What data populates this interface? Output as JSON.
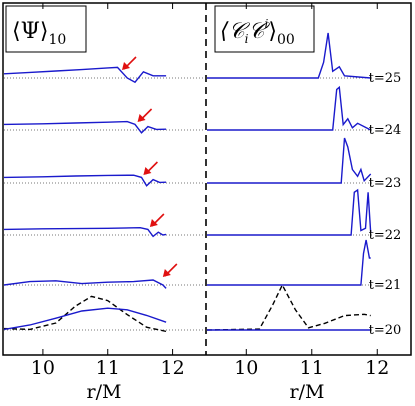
{
  "chart_data": {
    "type": "line",
    "xlabel": "r/M",
    "colors": {
      "main": "#1a1acc",
      "initial": "#000000",
      "baseline": "#777777",
      "arrow": "#e01010",
      "divider": "#000000"
    },
    "panels": [
      {
        "id": "left",
        "label_main": "⟨Ψ⟩",
        "label_sub": "10",
        "xlim": [
          9.4,
          12.5
        ],
        "x_ticks": [
          10,
          11,
          12
        ],
        "x_tick_labels": [
          "10",
          "11",
          "12"
        ]
      },
      {
        "id": "right",
        "label_main": "⟨𝒞",
        "label_sub_i": "i",
        "label_mid": "𝒞",
        "label_sup_i": "i",
        "label_close": "⟩",
        "label_sub": "00",
        "xlim": [
          9.4,
          12.5
        ],
        "x_ticks": [
          10,
          11,
          12
        ],
        "x_tick_labels": [
          "10",
          "11",
          "12"
        ]
      }
    ],
    "rows": [
      {
        "time_label": "t=25",
        "left_series": [
          [
            9.4,
            0.15
          ],
          [
            9.8,
            0.2
          ],
          [
            10.2,
            0.25
          ],
          [
            10.6,
            0.3
          ],
          [
            11.0,
            0.36
          ],
          [
            11.15,
            0.38
          ],
          [
            11.3,
            0.0
          ],
          [
            11.42,
            -0.15
          ],
          [
            11.55,
            0.22
          ],
          [
            11.7,
            0.08
          ],
          [
            11.9,
            0.08
          ]
        ],
        "arrow_x": 11.22,
        "right_series": [
          [
            9.4,
            0
          ],
          [
            11.1,
            0
          ],
          [
            11.18,
            0.35
          ],
          [
            11.25,
            1.0
          ],
          [
            11.32,
            0.15
          ],
          [
            11.42,
            0.25
          ],
          [
            11.5,
            0.05
          ],
          [
            11.9,
            0
          ]
        ]
      },
      {
        "time_label": "t=24",
        "left_series": [
          [
            9.4,
            0.2
          ],
          [
            10.0,
            0.22
          ],
          [
            10.5,
            0.25
          ],
          [
            11.0,
            0.28
          ],
          [
            11.3,
            0.3
          ],
          [
            11.42,
            0.2
          ],
          [
            11.52,
            -0.1
          ],
          [
            11.62,
            0.12
          ],
          [
            11.75,
            0.02
          ],
          [
            11.9,
            0.03
          ]
        ],
        "arrow_x": 11.46,
        "right_series": [
          [
            9.4,
            0
          ],
          [
            11.32,
            0
          ],
          [
            11.38,
            0.9
          ],
          [
            11.42,
            0.95
          ],
          [
            11.48,
            0.12
          ],
          [
            11.55,
            0.25
          ],
          [
            11.62,
            0.05
          ],
          [
            11.7,
            0.15
          ],
          [
            11.9,
            0
          ]
        ]
      },
      {
        "time_label": "t=23",
        "left_series": [
          [
            9.4,
            0.2
          ],
          [
            10.0,
            0.22
          ],
          [
            10.5,
            0.25
          ],
          [
            11.0,
            0.27
          ],
          [
            11.4,
            0.28
          ],
          [
            11.52,
            0.2
          ],
          [
            11.6,
            -0.1
          ],
          [
            11.7,
            0.12
          ],
          [
            11.8,
            0.02
          ],
          [
            11.9,
            0.03
          ]
        ],
        "arrow_x": 11.55,
        "right_series": [
          [
            9.4,
            0
          ],
          [
            11.45,
            0
          ],
          [
            11.5,
            1.0
          ],
          [
            11.55,
            0.8
          ],
          [
            11.62,
            0.3
          ],
          [
            11.7,
            0.15
          ],
          [
            11.75,
            0.3
          ],
          [
            11.8,
            0.05
          ],
          [
            11.9,
            0.2
          ]
        ]
      },
      {
        "time_label": "t=22",
        "left_series": [
          [
            9.4,
            0.2
          ],
          [
            10.0,
            0.22
          ],
          [
            10.5,
            0.23
          ],
          [
            11.0,
            0.24
          ],
          [
            11.5,
            0.26
          ],
          [
            11.62,
            0.2
          ],
          [
            11.7,
            -0.05
          ],
          [
            11.78,
            0.1
          ],
          [
            11.85,
            0.0
          ],
          [
            11.9,
            0.02
          ]
        ],
        "arrow_x": 11.65,
        "right_series": [
          [
            9.4,
            0
          ],
          [
            11.6,
            0
          ],
          [
            11.65,
            0.95
          ],
          [
            11.7,
            1.0
          ],
          [
            11.75,
            0.1
          ],
          [
            11.82,
            0.15
          ],
          [
            11.86,
            0.95
          ],
          [
            11.9,
            0.05
          ]
        ]
      },
      {
        "time_label": "t=21",
        "left_series": [
          [
            9.4,
            0.0
          ],
          [
            9.8,
            0.12
          ],
          [
            10.2,
            0.15
          ],
          [
            10.6,
            0.05
          ],
          [
            11.0,
            0.1
          ],
          [
            11.4,
            0.12
          ],
          [
            11.7,
            0.18
          ],
          [
            11.85,
            0.0
          ],
          [
            11.9,
            -0.12
          ]
        ],
        "arrow_x": 11.85,
        "right_series": [
          [
            9.4,
            0
          ],
          [
            11.75,
            0
          ],
          [
            11.79,
            0.7
          ],
          [
            11.83,
            1.0
          ],
          [
            11.88,
            0.6
          ],
          [
            11.9,
            0.6
          ]
        ]
      },
      {
        "time_label": "t=20",
        "left_series": [
          [
            9.4,
            0.02
          ],
          [
            9.8,
            0.18
          ],
          [
            10.2,
            0.42
          ],
          [
            10.6,
            0.68
          ],
          [
            11.0,
            0.78
          ],
          [
            11.3,
            0.72
          ],
          [
            11.6,
            0.52
          ],
          [
            11.9,
            0.28
          ]
        ],
        "left_initial": [
          [
            9.4,
            0.05
          ],
          [
            9.8,
            0.02
          ],
          [
            10.2,
            0.25
          ],
          [
            10.5,
            0.85
          ],
          [
            10.75,
            1.2
          ],
          [
            11.0,
            1.05
          ],
          [
            11.3,
            0.55
          ],
          [
            11.6,
            0.1
          ],
          [
            11.9,
            -0.05
          ]
        ],
        "arrow_x": null,
        "right_series": [
          [
            9.4,
            0
          ],
          [
            11.9,
            0
          ]
        ],
        "right_initial": [
          [
            9.4,
            0
          ],
          [
            10.2,
            0.02
          ],
          [
            10.4,
            0.55
          ],
          [
            10.55,
            1.0
          ],
          [
            10.75,
            0.45
          ],
          [
            10.95,
            0.05
          ],
          [
            11.2,
            0.15
          ],
          [
            11.5,
            0.32
          ],
          [
            11.8,
            0.35
          ],
          [
            11.9,
            0.32
          ]
        ]
      }
    ]
  }
}
